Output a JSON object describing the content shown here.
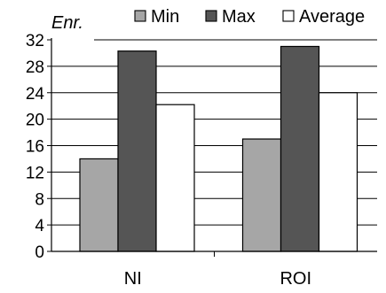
{
  "chart_data": {
    "type": "bar",
    "ylabel": "Enr.",
    "categories": [
      "NI",
      "ROI"
    ],
    "series": [
      {
        "name": "Min",
        "values": [
          14,
          17
        ],
        "color": "#a6a6a6"
      },
      {
        "name": "Max",
        "values": [
          30.3,
          31
        ],
        "color": "#555555"
      },
      {
        "name": "Average",
        "values": [
          22.2,
          24
        ],
        "color": "#ffffff"
      }
    ],
    "ylim": [
      0,
      32
    ],
    "yticks": [
      "0",
      "4",
      "8",
      "12",
      "16",
      "20",
      "24",
      "28",
      "32"
    ],
    "grid": true,
    "legend_position": "top-right"
  }
}
